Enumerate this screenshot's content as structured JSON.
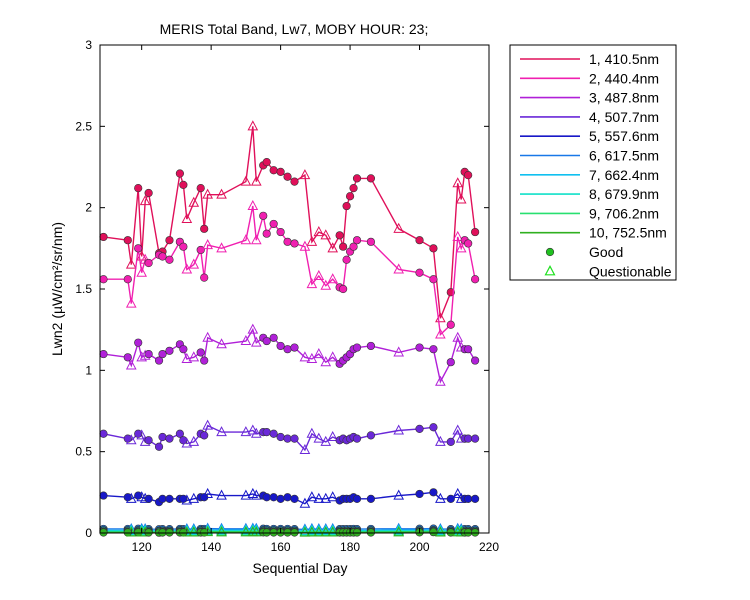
{
  "chart_data": {
    "type": "line",
    "title": "MERIS Total Band, Lw7, MOBY HOUR: 23;",
    "xlabel": "Sequential Day",
    "ylabel": "Lwn2 (µW/cm²/sr/nm)",
    "xlim": [
      108,
      220
    ],
    "ylim": [
      0,
      3
    ],
    "xticks": [
      120,
      140,
      160,
      180,
      200,
      220
    ],
    "yticks": [
      0,
      0.5,
      1,
      1.5,
      2,
      2.5,
      3
    ],
    "xtick_labels": [
      "120",
      "140",
      "160",
      "180",
      "200",
      "220"
    ],
    "ytick_labels": [
      "0",
      "0.5",
      "1",
      "1.5",
      "2",
      "2.5",
      "3"
    ],
    "grid": false,
    "legend_position": "outside-top-right",
    "x": [
      109,
      116,
      117,
      119,
      120,
      121,
      122,
      125,
      126,
      128,
      131,
      132,
      133,
      135,
      137,
      138,
      139,
      143,
      150,
      152,
      153,
      155,
      156,
      158,
      160,
      162,
      164,
      167,
      169,
      171,
      173,
      175,
      177,
      178,
      179,
      180,
      181,
      182,
      186,
      194,
      200,
      204,
      206,
      209,
      211,
      212,
      213,
      214,
      216
    ],
    "quality": [
      "g",
      "g",
      "q",
      "g",
      "q",
      "q",
      "g",
      "g",
      "g",
      "g",
      "g",
      "g",
      "q",
      "q",
      "g",
      "g",
      "q",
      "q",
      "q",
      "q",
      "q",
      "g",
      "g",
      "g",
      "g",
      "g",
      "g",
      "q",
      "q",
      "q",
      "q",
      "q",
      "g",
      "g",
      "g",
      "g",
      "g",
      "g",
      "g",
      "q",
      "g",
      "g",
      "q",
      "g",
      "q",
      "q",
      "g",
      "g",
      "g"
    ],
    "series": [
      {
        "name": "1, 410.5nm",
        "color": "#e0105a",
        "values": [
          1.82,
          1.8,
          1.65,
          2.12,
          1.7,
          2.04,
          2.09,
          1.72,
          1.73,
          1.8,
          2.21,
          2.14,
          1.93,
          2.03,
          2.12,
          1.87,
          2.08,
          2.08,
          2.16,
          2.5,
          2.16,
          2.26,
          2.28,
          2.23,
          2.22,
          2.19,
          2.16,
          2.2,
          1.79,
          1.85,
          1.83,
          1.75,
          1.83,
          1.76,
          2.01,
          2.07,
          2.12,
          2.18,
          2.18,
          1.87,
          1.8,
          1.75,
          1.32,
          1.48,
          2.15,
          2.05,
          2.22,
          2.2,
          1.85
        ]
      },
      {
        "name": "2, 440.4nm",
        "color": "#f020b0",
        "values": [
          1.56,
          1.56,
          1.41,
          1.75,
          1.6,
          1.68,
          1.66,
          1.71,
          1.7,
          1.68,
          1.79,
          1.76,
          1.62,
          1.65,
          1.74,
          1.57,
          1.77,
          1.75,
          1.8,
          2.01,
          1.8,
          1.95,
          1.84,
          1.9,
          1.85,
          1.79,
          1.78,
          1.76,
          1.53,
          1.58,
          1.52,
          1.56,
          1.51,
          1.5,
          1.68,
          1.73,
          1.76,
          1.8,
          1.79,
          1.62,
          1.6,
          1.56,
          1.22,
          1.28,
          1.82,
          1.75,
          1.8,
          1.78,
          1.56
        ]
      },
      {
        "name": "3, 487.8nm",
        "color": "#b020d8",
        "values": [
          1.1,
          1.08,
          1.03,
          1.17,
          1.08,
          1.09,
          1.1,
          1.06,
          1.1,
          1.12,
          1.16,
          1.13,
          1.07,
          1.08,
          1.11,
          1.06,
          1.2,
          1.16,
          1.18,
          1.25,
          1.17,
          1.2,
          1.18,
          1.2,
          1.15,
          1.13,
          1.14,
          1.08,
          1.07,
          1.1,
          1.05,
          1.08,
          1.04,
          1.06,
          1.08,
          1.1,
          1.13,
          1.14,
          1.15,
          1.11,
          1.14,
          1.13,
          0.93,
          1.05,
          1.2,
          1.14,
          1.13,
          1.13,
          1.06
        ]
      },
      {
        "name": "4, 507.7nm",
        "color": "#6a28d8",
        "values": [
          0.61,
          0.58,
          0.57,
          0.61,
          0.6,
          0.56,
          0.57,
          0.53,
          0.59,
          0.58,
          0.61,
          0.57,
          0.55,
          0.56,
          0.61,
          0.6,
          0.66,
          0.62,
          0.62,
          0.63,
          0.61,
          0.62,
          0.62,
          0.61,
          0.59,
          0.58,
          0.58,
          0.51,
          0.61,
          0.58,
          0.56,
          0.59,
          0.57,
          0.58,
          0.57,
          0.58,
          0.59,
          0.58,
          0.6,
          0.63,
          0.64,
          0.65,
          0.56,
          0.56,
          0.63,
          0.58,
          0.58,
          0.58,
          0.58
        ]
      },
      {
        "name": "5, 557.6nm",
        "color": "#1818c8",
        "values": [
          0.23,
          0.22,
          0.21,
          0.23,
          0.22,
          0.21,
          0.21,
          0.19,
          0.21,
          0.21,
          0.21,
          0.21,
          0.2,
          0.21,
          0.22,
          0.22,
          0.24,
          0.23,
          0.23,
          0.24,
          0.23,
          0.23,
          0.22,
          0.22,
          0.21,
          0.22,
          0.21,
          0.18,
          0.22,
          0.21,
          0.21,
          0.22,
          0.2,
          0.21,
          0.21,
          0.21,
          0.22,
          0.21,
          0.21,
          0.23,
          0.24,
          0.25,
          0.21,
          0.21,
          0.24,
          0.21,
          0.21,
          0.21,
          0.21
        ]
      },
      {
        "name": "6, 617.5nm",
        "color": "#1878e8",
        "values": [
          0.025,
          0.025,
          0.024,
          0.026,
          0.025,
          0.024,
          0.024,
          0.023,
          0.024,
          0.024,
          0.025,
          0.024,
          0.024,
          0.024,
          0.025,
          0.025,
          0.027,
          0.026,
          0.026,
          0.027,
          0.026,
          0.026,
          0.025,
          0.025,
          0.025,
          0.025,
          0.024,
          0.022,
          0.025,
          0.024,
          0.024,
          0.025,
          0.024,
          0.024,
          0.024,
          0.024,
          0.025,
          0.024,
          0.025,
          0.026,
          0.026,
          0.027,
          0.024,
          0.024,
          0.026,
          0.024,
          0.024,
          0.024,
          0.024
        ]
      },
      {
        "name": "7, 662.4nm",
        "color": "#10c0f0",
        "values": [
          0.016,
          0.016,
          0.015,
          0.017,
          0.016,
          0.015,
          0.015,
          0.014,
          0.015,
          0.015,
          0.016,
          0.015,
          0.015,
          0.015,
          0.016,
          0.016,
          0.018,
          0.017,
          0.017,
          0.018,
          0.017,
          0.017,
          0.016,
          0.016,
          0.016,
          0.016,
          0.015,
          0.013,
          0.016,
          0.015,
          0.015,
          0.016,
          0.015,
          0.015,
          0.015,
          0.015,
          0.016,
          0.015,
          0.016,
          0.017,
          0.017,
          0.018,
          0.015,
          0.015,
          0.017,
          0.015,
          0.015,
          0.015,
          0.015
        ]
      },
      {
        "name": "8, 679.9nm",
        "color": "#10e0c8",
        "values": [
          0.012,
          0.012,
          0.011,
          0.013,
          0.012,
          0.011,
          0.011,
          0.01,
          0.011,
          0.011,
          0.012,
          0.011,
          0.011,
          0.011,
          0.012,
          0.012,
          0.014,
          0.013,
          0.013,
          0.014,
          0.013,
          0.013,
          0.012,
          0.012,
          0.012,
          0.012,
          0.011,
          0.01,
          0.012,
          0.011,
          0.011,
          0.012,
          0.011,
          0.011,
          0.011,
          0.011,
          0.012,
          0.011,
          0.012,
          0.013,
          0.013,
          0.014,
          0.011,
          0.011,
          0.013,
          0.011,
          0.011,
          0.011,
          0.011
        ]
      },
      {
        "name": "9, 706.2nm",
        "color": "#28e070",
        "values": [
          0.007,
          0.007,
          0.006,
          0.008,
          0.007,
          0.006,
          0.006,
          0.005,
          0.006,
          0.006,
          0.007,
          0.006,
          0.006,
          0.006,
          0.007,
          0.007,
          0.009,
          0.008,
          0.008,
          0.009,
          0.008,
          0.008,
          0.007,
          0.007,
          0.007,
          0.007,
          0.006,
          0.005,
          0.007,
          0.006,
          0.006,
          0.007,
          0.006,
          0.006,
          0.006,
          0.006,
          0.007,
          0.006,
          0.007,
          0.008,
          0.008,
          0.009,
          0.006,
          0.006,
          0.008,
          0.006,
          0.006,
          0.006,
          0.006
        ]
      },
      {
        "name": "10, 752.5nm",
        "color": "#30b020",
        "values": [
          0.003,
          0.003,
          0.003,
          0.004,
          0.003,
          0.003,
          0.003,
          0.002,
          0.003,
          0.003,
          0.003,
          0.003,
          0.003,
          0.003,
          0.003,
          0.003,
          0.005,
          0.004,
          0.004,
          0.005,
          0.004,
          0.004,
          0.003,
          0.003,
          0.003,
          0.003,
          0.003,
          0.002,
          0.003,
          0.003,
          0.003,
          0.003,
          0.003,
          0.003,
          0.003,
          0.003,
          0.003,
          0.003,
          0.003,
          0.004,
          0.004,
          0.005,
          0.003,
          0.003,
          0.004,
          0.003,
          0.003,
          0.003,
          0.003
        ]
      }
    ],
    "marker_legend": [
      {
        "label": "Good",
        "marker": "circle",
        "color": "#20c020"
      },
      {
        "label": "Questionable",
        "marker": "triangle",
        "color": "#20e020"
      }
    ]
  }
}
